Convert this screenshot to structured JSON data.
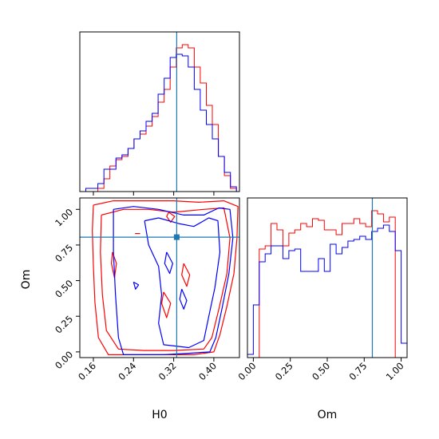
{
  "colors": {
    "series_red": "#ff0000",
    "series_blue": "#0000ff",
    "truth": "#1f77b4",
    "frame": "#000000"
  },
  "labels": {
    "x_param_1": "H0",
    "x_param_2": "Om",
    "y_param_2": "Om"
  },
  "chart_data": [
    {
      "type": "histogram",
      "panel": "H0 marginal",
      "xlim": [
        0.133,
        0.451
      ],
      "ticks": [
        "0.16",
        "0.24",
        "0.32",
        "0.40"
      ],
      "tick_values": [
        0.16,
        0.24,
        0.32,
        0.4
      ],
      "show_tick_labels": false,
      "truth": 0.326,
      "bin_edges": [
        0.133,
        0.145,
        0.157,
        0.169,
        0.181,
        0.193,
        0.205,
        0.217,
        0.229,
        0.241,
        0.253,
        0.265,
        0.277,
        0.289,
        0.301,
        0.313,
        0.325,
        0.337,
        0.349,
        0.361,
        0.373,
        0.385,
        0.397,
        0.409,
        0.421,
        0.433,
        0.445,
        0.451
      ],
      "series": [
        {
          "name": "red",
          "color": "#ff0000",
          "values": [
            0,
            0,
            0,
            0.02,
            0.08,
            0.16,
            0.2,
            0.22,
            0.27,
            0.33,
            0.36,
            0.41,
            0.47,
            0.56,
            0.64,
            0.78,
            0.9,
            0.92,
            0.9,
            0.78,
            0.68,
            0.54,
            0.42,
            0.22,
            0.1,
            0.02,
            0
          ]
        },
        {
          "name": "blue",
          "color": "#0000ff",
          "values": [
            0,
            0.02,
            0.02,
            0.05,
            0.14,
            0.14,
            0.21,
            0.23,
            0.27,
            0.33,
            0.38,
            0.44,
            0.49,
            0.61,
            0.71,
            0.84,
            0.86,
            0.85,
            0.78,
            0.64,
            0.51,
            0.42,
            0.33,
            0.22,
            0.12,
            0.03,
            0
          ]
        }
      ]
    },
    {
      "type": "contour",
      "panel": "H0 vs Om",
      "xlim": [
        0.133,
        0.451
      ],
      "ylim": [
        -0.04,
        1.08
      ],
      "xticks": [
        "0.16",
        "0.24",
        "0.32",
        "0.40"
      ],
      "xtick_values": [
        0.16,
        0.24,
        0.32,
        0.4
      ],
      "yticks": [
        "0.00",
        "0.25",
        "0.50",
        "0.75",
        "1.00"
      ],
      "ytick_values": [
        0.0,
        0.25,
        0.5,
        0.75,
        1.0
      ],
      "xlabel": "H0",
      "ylabel": "Om",
      "truth": {
        "x": 0.326,
        "y": 0.805
      },
      "series": [
        {
          "name": "red",
          "color": "#ff0000",
          "contours": [
            [
              [
                0.16,
                1.03
              ],
              [
                0.2,
                1.06
              ],
              [
                0.26,
                1.06
              ],
              [
                0.32,
                1.06
              ],
              [
                0.37,
                1.05
              ],
              [
                0.42,
                1.06
              ],
              [
                0.448,
                1.02
              ],
              [
                0.446,
                0.8
              ],
              [
                0.44,
                0.55
              ],
              [
                0.426,
                0.32
              ],
              [
                0.412,
                0.12
              ],
              [
                0.4,
                0.0
              ],
              [
                0.36,
                -0.02
              ],
              [
                0.3,
                -0.02
              ],
              [
                0.24,
                -0.02
              ],
              [
                0.19,
                -0.02
              ],
              [
                0.17,
                0.1
              ],
              [
                0.163,
                0.35
              ],
              [
                0.16,
                0.6
              ],
              [
                0.158,
                0.85
              ],
              [
                0.16,
                1.03
              ]
            ],
            [
              [
                0.176,
                0.96
              ],
              [
                0.22,
                1.0
              ],
              [
                0.27,
                1.0
              ],
              [
                0.32,
                0.98
              ],
              [
                0.38,
                1.0
              ],
              [
                0.42,
                1.01
              ],
              [
                0.432,
                0.8
              ],
              [
                0.426,
                0.55
              ],
              [
                0.41,
                0.3
              ],
              [
                0.396,
                0.1
              ],
              [
                0.38,
                0.02
              ],
              [
                0.32,
                0.01
              ],
              [
                0.26,
                0.01
              ],
              [
                0.21,
                0.02
              ],
              [
                0.186,
                0.15
              ],
              [
                0.178,
                0.4
              ],
              [
                0.174,
                0.7
              ],
              [
                0.176,
                0.96
              ]
            ],
            [
              [
                0.198,
                0.7
              ],
              [
                0.206,
                0.62
              ],
              [
                0.202,
                0.52
              ],
              [
                0.196,
                0.62
              ],
              [
                0.198,
                0.7
              ]
            ],
            [
              [
                0.3,
                0.42
              ],
              [
                0.314,
                0.34
              ],
              [
                0.306,
                0.24
              ],
              [
                0.296,
                0.34
              ],
              [
                0.3,
                0.42
              ]
            ],
            [
              [
                0.34,
                0.62
              ],
              [
                0.352,
                0.54
              ],
              [
                0.346,
                0.46
              ],
              [
                0.336,
                0.54
              ],
              [
                0.34,
                0.62
              ]
            ],
            [
              [
                0.31,
                0.98
              ],
              [
                0.322,
                0.95
              ],
              [
                0.314,
                0.91
              ],
              [
                0.306,
                0.95
              ],
              [
                0.31,
                0.98
              ]
            ],
            [
              [
                0.243,
                0.83
              ],
              [
                0.253,
                0.83
              ]
            ]
          ]
        },
        {
          "name": "blue",
          "color": "#0000ff",
          "contours": [
            [
              [
                0.2,
                1.0
              ],
              [
                0.24,
                1.02
              ],
              [
                0.29,
                1.0
              ],
              [
                0.34,
                0.96
              ],
              [
                0.38,
                0.96
              ],
              [
                0.41,
                1.01
              ],
              [
                0.432,
                1.0
              ],
              [
                0.438,
                0.8
              ],
              [
                0.43,
                0.55
              ],
              [
                0.416,
                0.3
              ],
              [
                0.404,
                0.1
              ],
              [
                0.392,
                0.0
              ],
              [
                0.35,
                -0.01
              ],
              [
                0.3,
                -0.02
              ],
              [
                0.25,
                -0.02
              ],
              [
                0.22,
                -0.02
              ],
              [
                0.21,
                0.1
              ],
              [
                0.204,
                0.4
              ],
              [
                0.2,
                0.7
              ],
              [
                0.2,
                1.0
              ]
            ],
            [
              [
                0.262,
                0.92
              ],
              [
                0.29,
                0.94
              ],
              [
                0.33,
                0.9
              ],
              [
                0.36,
                0.88
              ],
              [
                0.39,
                0.94
              ],
              [
                0.408,
                0.92
              ],
              [
                0.412,
                0.7
              ],
              [
                0.402,
                0.45
              ],
              [
                0.39,
                0.25
              ],
              [
                0.38,
                0.08
              ],
              [
                0.35,
                0.03
              ],
              [
                0.3,
                0.05
              ],
              [
                0.29,
                0.2
              ],
              [
                0.296,
                0.4
              ],
              [
                0.29,
                0.6
              ],
              [
                0.27,
                0.75
              ],
              [
                0.262,
                0.92
              ]
            ],
            [
              [
                0.306,
                0.7
              ],
              [
                0.318,
                0.62
              ],
              [
                0.312,
                0.55
              ],
              [
                0.302,
                0.62
              ],
              [
                0.306,
                0.7
              ]
            ],
            [
              [
                0.336,
                0.44
              ],
              [
                0.346,
                0.36
              ],
              [
                0.34,
                0.3
              ],
              [
                0.332,
                0.37
              ],
              [
                0.336,
                0.44
              ]
            ],
            [
              [
                0.24,
                0.49
              ],
              [
                0.25,
                0.47
              ],
              [
                0.244,
                0.44
              ],
              [
                0.24,
                0.49
              ]
            ]
          ]
        }
      ]
    },
    {
      "type": "histogram",
      "panel": "Om marginal",
      "xlim": [
        -0.04,
        1.04
      ],
      "ticks": [
        "0.00",
        "0.25",
        "0.50",
        "0.75",
        "1.00"
      ],
      "tick_values": [
        0.0,
        0.25,
        0.5,
        0.75,
        1.0
      ],
      "xlabel": "Om",
      "truth": 0.805,
      "bin_edges": [
        -0.04,
        0.0,
        0.04,
        0.08,
        0.12,
        0.16,
        0.2,
        0.24,
        0.28,
        0.32,
        0.36,
        0.4,
        0.44,
        0.48,
        0.52,
        0.56,
        0.6,
        0.64,
        0.68,
        0.72,
        0.76,
        0.8,
        0.84,
        0.88,
        0.92,
        0.96,
        1.0,
        1.04
      ],
      "series": [
        {
          "name": "red",
          "color": "#ff0000",
          "values": [
            0,
            0,
            0.68,
            0.7,
            0.84,
            0.8,
            0.7,
            0.78,
            0.8,
            0.84,
            0.82,
            0.87,
            0.86,
            0.8,
            0.8,
            0.77,
            0.84,
            0.84,
            0.87,
            0.84,
            0.82,
            0.92,
            0.9,
            0.85,
            0.88,
            0,
            0
          ]
        },
        {
          "name": "blue",
          "color": "#0000ff",
          "values": [
            0.02,
            0.33,
            0.6,
            0.65,
            0.7,
            0.7,
            0.62,
            0.67,
            0.68,
            0.54,
            0.54,
            0.54,
            0.62,
            0.54,
            0.71,
            0.65,
            0.69,
            0.73,
            0.74,
            0.76,
            0.74,
            0.79,
            0.81,
            0.83,
            0.79,
            0.67,
            0.09
          ]
        }
      ]
    }
  ]
}
